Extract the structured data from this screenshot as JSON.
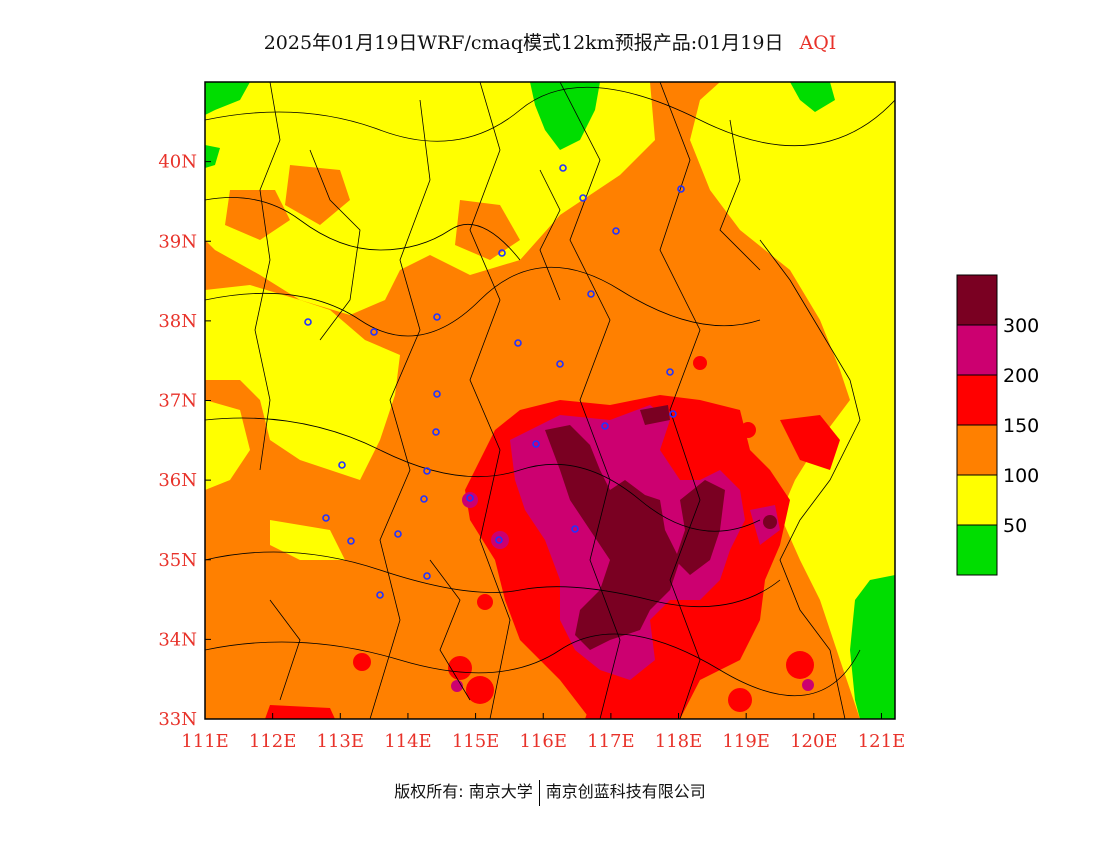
{
  "title": {
    "text": "2025年01月19日WRF/cmaq模式12km预报产品:01月19日",
    "tag": "AQI",
    "tag_color": "#e8322a"
  },
  "map": {
    "lon_range": [
      111,
      121.2
    ],
    "lat_range": [
      33,
      41
    ],
    "lon_ticks": [
      "111E",
      "112E",
      "113E",
      "114E",
      "115E",
      "116E",
      "117E",
      "118E",
      "119E",
      "120E",
      "121E"
    ],
    "lat_ticks": [
      "33N",
      "34N",
      "35N",
      "36N",
      "37N",
      "38N",
      "39N",
      "40N"
    ],
    "tick_color": "#e8322a"
  },
  "legend": {
    "levels": [
      {
        "color": "#7a0022",
        "label": ""
      },
      {
        "color": "#cc0070",
        "label": "300"
      },
      {
        "color": "#ff0000",
        "label": "200"
      },
      {
        "color": "#ff8000",
        "label": "150"
      },
      {
        "color": "#ffff00",
        "label": "100"
      },
      {
        "color": "#00dd00",
        "label": "50"
      }
    ]
  },
  "footer": {
    "left": "版权所有: 南京大学",
    "right": "南京创蓝科技有限公司"
  }
}
